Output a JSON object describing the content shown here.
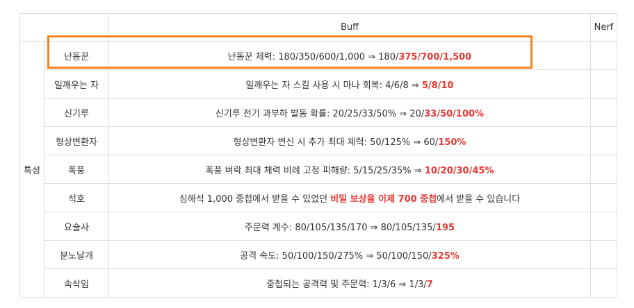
{
  "header": {
    "buff": "Buff",
    "nerf": "Nerf"
  },
  "category": "특성",
  "rows": [
    {
      "name": "난동꾼",
      "desc": [
        {
          "t": "난동꾼 체력: 180/350/600/1,000 ⇒ 180/"
        },
        {
          "t": "375/700/1,500",
          "hl": true
        }
      ]
    },
    {
      "name": "일깨우는 자",
      "desc": [
        {
          "t": "일깨우는 자 스킬 사용 시 마나 회복: 4/6/8 ⇒ "
        },
        {
          "t": "5/8/10",
          "hl": true
        }
      ]
    },
    {
      "name": "신기루",
      "desc": [
        {
          "t": "신기루 전기 과부하 발동 확률: 20/25/33/50% ⇒ 20/"
        },
        {
          "t": "33/50/100%",
          "hl": true
        }
      ]
    },
    {
      "name": "형상변환자",
      "desc": [
        {
          "t": "형상변환자 변신 시 추가 최대 체력: 50/125% ⇒ 60/"
        },
        {
          "t": "150%",
          "hl": true
        }
      ]
    },
    {
      "name": "폭풍",
      "desc": [
        {
          "t": "폭풍 벼락 최대 체력 비례 고정 피해량: 5/15/25/35% ⇒ "
        },
        {
          "t": "10/20/30/45%",
          "hl": true
        }
      ]
    },
    {
      "name": "석호",
      "desc": [
        {
          "t": "심해석 1,000 중첩에서 받을 수 있었던 "
        },
        {
          "t": "비밀 보상을 이제 700 중첩",
          "hl": true
        },
        {
          "t": "에서 받을 수 있습니다"
        }
      ]
    },
    {
      "name": "요술사",
      "desc": [
        {
          "t": "주문력 계수: 80/105/135/170 ⇒ 80/105/135/"
        },
        {
          "t": "195",
          "hl": true
        }
      ]
    },
    {
      "name": "분노날개",
      "desc": [
        {
          "t": "공격 속도: 50/100/150/275% ⇒ 50/100/150/"
        },
        {
          "t": "325%",
          "hl": true
        }
      ]
    },
    {
      "name": "속삭임",
      "desc": [
        {
          "t": "중첩되는 공격력 및 주문력: 1/3/6 ⇒ 1/3/"
        },
        {
          "t": "7",
          "hl": true
        }
      ]
    }
  ],
  "colors": {
    "highlight_text": "#e53935",
    "box_outline": "#f5821f",
    "border": "#dcdcdc"
  }
}
